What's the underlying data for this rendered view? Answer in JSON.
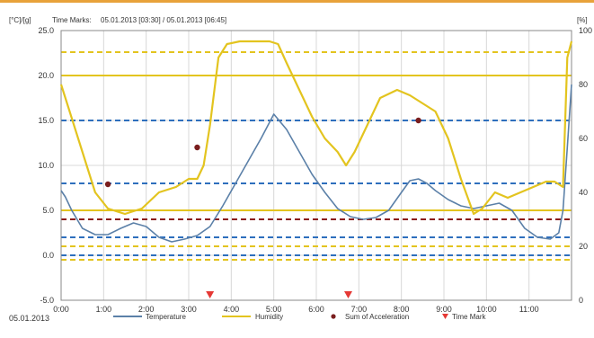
{
  "chart_data": {
    "type": "line",
    "ylabel_left": "[°C]/[g]",
    "ylabel_right": "[%]",
    "time_marks_label": "Time Marks:",
    "time_marks_value": "05.01.2013 [03:30] / 05.01.2013 [06:45]",
    "date_label": "05.01.2013",
    "x_ticks": [
      "0:00",
      "1:00",
      "2:00",
      "3:00",
      "4:00",
      "5:00",
      "6:00",
      "7:00",
      "8:00",
      "9:00",
      "10:00",
      "11:00"
    ],
    "xlim": [
      0,
      12
    ],
    "y_left_ticks": [
      "25.0",
      "20.0",
      "15.0",
      "10.0",
      "5.0",
      "0.0",
      "-5.0"
    ],
    "ylim_left": [
      -5,
      25
    ],
    "y_right_ticks": [
      "100",
      "80",
      "60",
      "40",
      "20",
      "0"
    ],
    "ylim_right": [
      0,
      100
    ],
    "grid": true,
    "legend_position": "bottom",
    "legend": {
      "temperature": "Temperature",
      "humidity": "Humidity",
      "acceleration": "Sum of Acceleration",
      "time_mark": "Time Mark"
    },
    "colors": {
      "temperature": "#5b80a8",
      "humidity": "#e3c41f",
      "acceleration": "#7a1e1e",
      "time_mark": "#e53935",
      "line_blue": "#2e6fbd",
      "line_yellow": "#e3c41f",
      "line_darkred": "#8b1a1a"
    },
    "series": [
      {
        "key": "temperature",
        "axis": "left",
        "x": [
          0,
          0.1,
          0.25,
          0.5,
          0.8,
          1.1,
          1.4,
          1.7,
          2.0,
          2.3,
          2.6,
          2.9,
          3.2,
          3.5,
          3.8,
          4.1,
          4.4,
          4.7,
          5.0,
          5.3,
          5.6,
          5.9,
          6.2,
          6.5,
          6.8,
          7.1,
          7.4,
          7.7,
          8.0,
          8.2,
          8.4,
          8.6,
          8.8,
          9.1,
          9.4,
          9.7,
          10.0,
          10.3,
          10.6,
          10.9,
          11.2,
          11.5,
          11.7,
          11.8,
          11.9,
          12.0
        ],
        "y": [
          7.2,
          6.5,
          5.0,
          3.0,
          2.3,
          2.3,
          3.0,
          3.6,
          3.2,
          2.0,
          1.5,
          1.8,
          2.2,
          3.2,
          5.5,
          8.0,
          10.5,
          13.0,
          15.7,
          14.0,
          11.5,
          9.0,
          7.0,
          5.2,
          4.3,
          4.0,
          4.2,
          5.0,
          7.0,
          8.3,
          8.5,
          8.0,
          7.2,
          6.2,
          5.5,
          5.2,
          5.5,
          5.8,
          5.0,
          3.0,
          2.0,
          1.8,
          2.5,
          5.0,
          12.0,
          19.0
        ]
      },
      {
        "key": "humidity",
        "axis": "right",
        "x": [
          0,
          0.2,
          0.5,
          0.8,
          1.1,
          1.5,
          1.9,
          2.3,
          2.7,
          3.0,
          3.2,
          3.35,
          3.5,
          3.7,
          3.9,
          4.2,
          4.6,
          4.9,
          5.1,
          5.3,
          5.6,
          5.9,
          6.2,
          6.5,
          6.7,
          6.9,
          7.2,
          7.5,
          7.9,
          8.2,
          8.5,
          8.8,
          9.1,
          9.4,
          9.7,
          9.9,
          10.2,
          10.5,
          10.8,
          11.1,
          11.4,
          11.6,
          11.8,
          11.9,
          12.0
        ],
        "y": [
          80,
          70,
          55,
          40,
          34,
          32,
          34,
          40,
          42,
          45,
          45,
          50,
          65,
          90,
          95,
          96,
          96,
          96,
          95,
          88,
          78,
          68,
          60,
          55,
          50,
          55,
          65,
          75,
          78,
          76,
          73,
          70,
          60,
          45,
          32,
          34,
          40,
          38,
          40,
          42,
          44,
          44,
          42,
          90,
          96
        ]
      }
    ],
    "acceleration_points": {
      "x": [
        1.1,
        3.2,
        8.4
      ],
      "y": [
        7.9,
        12.0,
        15.0
      ]
    },
    "time_mark_points": {
      "x": [
        3.5,
        6.75
      ]
    },
    "reference_lines": [
      {
        "axis": "left",
        "value": 20.0,
        "style": "solid",
        "color": "line_yellow"
      },
      {
        "axis": "left",
        "value": 15.0,
        "style": "dashed",
        "color": "line_blue"
      },
      {
        "axis": "left",
        "value": 8.0,
        "style": "dashed",
        "color": "line_blue"
      },
      {
        "axis": "left",
        "value": 5.0,
        "style": "solid",
        "color": "line_yellow"
      },
      {
        "axis": "left",
        "value": 4.0,
        "style": "dashed",
        "color": "line_darkred"
      },
      {
        "axis": "left",
        "value": 2.0,
        "style": "dashed",
        "color": "line_blue"
      },
      {
        "axis": "left",
        "value": 0.0,
        "style": "dashed",
        "color": "line_blue"
      },
      {
        "axis": "right",
        "value": 92,
        "style": "dashed",
        "color": "line_yellow"
      },
      {
        "axis": "right",
        "value": 15,
        "style": "dashed",
        "color": "line_yellow"
      },
      {
        "axis": "right",
        "value": 20,
        "style": "dashed",
        "color": "line_yellow"
      }
    ]
  }
}
